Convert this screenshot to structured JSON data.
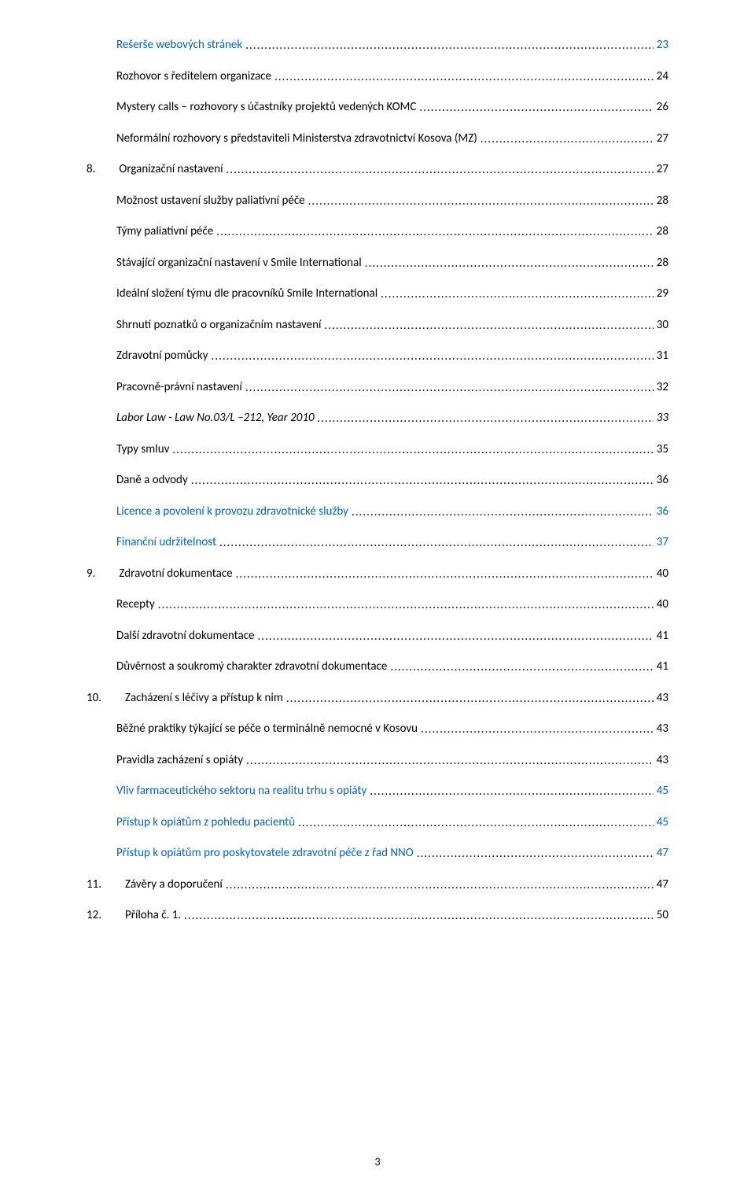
{
  "page_number": "3",
  "link_color": "#0563c1",
  "text_color": "#000000",
  "background_color": "#ffffff",
  "font_family": "Calibri, Arial, sans-serif",
  "toc": [
    {
      "num": "",
      "title": "Rešerše webových stránek",
      "page": "23",
      "indent": 1,
      "link": true,
      "italic": false
    },
    {
      "num": "",
      "title": "Rozhovor s ředitelem organizace",
      "page": "24",
      "indent": 1,
      "link": false,
      "italic": false
    },
    {
      "num": "",
      "title": "Mystery calls – rozhovory s účastníky projektů vedených KOMC",
      "page": "26",
      "indent": 1,
      "link": false,
      "italic": false
    },
    {
      "num": "",
      "title": "Neformální rozhovory s představiteli Ministerstva zdravotnictví Kosova (MZ)",
      "page": "27",
      "indent": 1,
      "link": false,
      "italic": false
    },
    {
      "num": "8.",
      "title": "Organizační nastavení",
      "page": "27",
      "indent": 0,
      "link": false,
      "italic": false
    },
    {
      "num": "",
      "title": "Možnost ustavení služby paliativní péče",
      "page": "28",
      "indent": 1,
      "link": false,
      "italic": false
    },
    {
      "num": "",
      "title": "Týmy paliativní péče",
      "page": "28",
      "indent": 1,
      "link": false,
      "italic": false
    },
    {
      "num": "",
      "title": "Stávající organizační nastavení v Smile International",
      "page": "28",
      "indent": 1,
      "link": false,
      "italic": false
    },
    {
      "num": "",
      "title": "Ideální složení týmu dle pracovníků Smile International",
      "page": "29",
      "indent": 1,
      "link": false,
      "italic": false
    },
    {
      "num": "",
      "title": "Shrnutí poznatků o organizačním nastavení",
      "page": "30",
      "indent": 1,
      "link": false,
      "italic": false
    },
    {
      "num": "",
      "title": "Zdravotní pomůcky",
      "page": "31",
      "indent": 1,
      "link": false,
      "italic": false
    },
    {
      "num": "",
      "title": "Pracovně-právní nastavení",
      "page": "32",
      "indent": 1,
      "link": false,
      "italic": false
    },
    {
      "num": "",
      "title": "Labor Law -  Law No.03/L –212,  Year 2010",
      "page": "33",
      "indent": 1,
      "link": false,
      "italic": true
    },
    {
      "num": "",
      "title": "Typy smluv",
      "page": "35",
      "indent": 1,
      "link": false,
      "italic": false
    },
    {
      "num": "",
      "title": "Daně a odvody",
      "page": "36",
      "indent": 1,
      "link": false,
      "italic": false
    },
    {
      "num": "",
      "title": "Licence a povolení k provozu zdravotnické služby",
      "page": "36",
      "indent": 1,
      "link": true,
      "italic": false
    },
    {
      "num": "",
      "title": "Finanční udržitelnost",
      "page": "37",
      "indent": 1,
      "link": true,
      "italic": false
    },
    {
      "num": "9.",
      "title": "Zdravotní dokumentace",
      "page": "40",
      "indent": 0,
      "link": false,
      "italic": false
    },
    {
      "num": "",
      "title": "Recepty",
      "page": "40",
      "indent": 1,
      "link": false,
      "italic": false
    },
    {
      "num": "",
      "title": "Další zdravotní dokumentace",
      "page": "41",
      "indent": 1,
      "link": false,
      "italic": false
    },
    {
      "num": "",
      "title": "Důvěrnost a soukromý charakter zdravotní dokumentace",
      "page": "41",
      "indent": 1,
      "link": false,
      "italic": false
    },
    {
      "num": "10.",
      "title": "Zacházení s léčivy a přístup k nim",
      "page": "43",
      "indent": 0,
      "link": false,
      "italic": false
    },
    {
      "num": "",
      "title": "Běžné praktiky týkající se péče o terminálně nemocné v Kosovu",
      "page": "43",
      "indent": 1,
      "link": false,
      "italic": false
    },
    {
      "num": "",
      "title": "Pravidla zacházení s opiáty",
      "page": "43",
      "indent": 1,
      "link": false,
      "italic": false
    },
    {
      "num": "",
      "title": "Vliv farmaceutického sektoru na realitu trhu s opiáty",
      "page": "45",
      "indent": 1,
      "link": true,
      "italic": false
    },
    {
      "num": "",
      "title": "Přístup k opiátům z pohledu pacientů",
      "page": "45",
      "indent": 1,
      "link": true,
      "italic": false
    },
    {
      "num": "",
      "title": "Přístup k opiátům pro poskytovatele zdravotní péče z řad NNO",
      "page": "47",
      "indent": 1,
      "link": true,
      "italic": false
    },
    {
      "num": "11.",
      "title": "Závěry a doporučení",
      "page": "47",
      "indent": 0,
      "link": false,
      "italic": false
    },
    {
      "num": "12.",
      "title": "Příloha č. 1.",
      "page": "50",
      "indent": 0,
      "link": false,
      "italic": false
    }
  ]
}
